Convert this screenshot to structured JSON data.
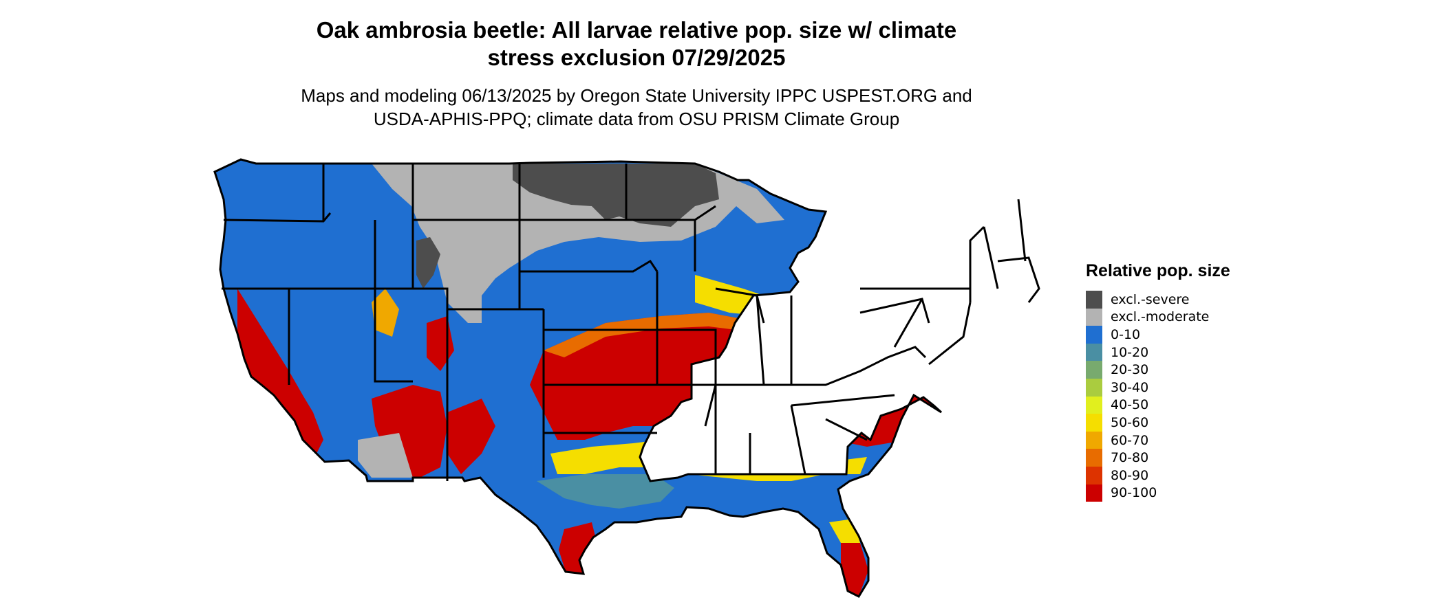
{
  "header": {
    "title_line1": "Oak ambrosia beetle: All larvae relative pop. size w/ climate",
    "title_line2": "stress exclusion 07/29/2025",
    "subtitle_line1": "Maps and modeling 06/13/2025 by Oregon State University IPPC USPEST.ORG and",
    "subtitle_line2": "USDA-APHIS-PPQ; climate data from OSU PRISM Climate Group"
  },
  "legend": {
    "title": "Relative pop. size",
    "items": [
      {
        "label": "excl.-severe",
        "color": "#4d4d4d"
      },
      {
        "label": "excl.-moderate",
        "color": "#b3b3b3"
      },
      {
        "label": "0-10",
        "color": "#1f6fd1"
      },
      {
        "label": "10-20",
        "color": "#4a8fa3"
      },
      {
        "label": "20-30",
        "color": "#78aa6e"
      },
      {
        "label": "30-40",
        "color": "#aacc3f"
      },
      {
        "label": "40-50",
        "color": "#e1ef1e"
      },
      {
        "label": "50-60",
        "color": "#f5de00"
      },
      {
        "label": "60-70",
        "color": "#f0a800"
      },
      {
        "label": "70-80",
        "color": "#e86c00"
      },
      {
        "label": "80-90",
        "color": "#dd3300"
      },
      {
        "label": "90-100",
        "color": "#cc0000"
      }
    ]
  },
  "colors": {
    "severe": "#4d4d4d",
    "moderate": "#b3b3b3",
    "blue": "#1f6fd1",
    "teal": "#4a8fa3",
    "green": "#78aa6e",
    "yellow": "#f5de00",
    "orange": "#e86c00",
    "red": "#cc0000"
  }
}
